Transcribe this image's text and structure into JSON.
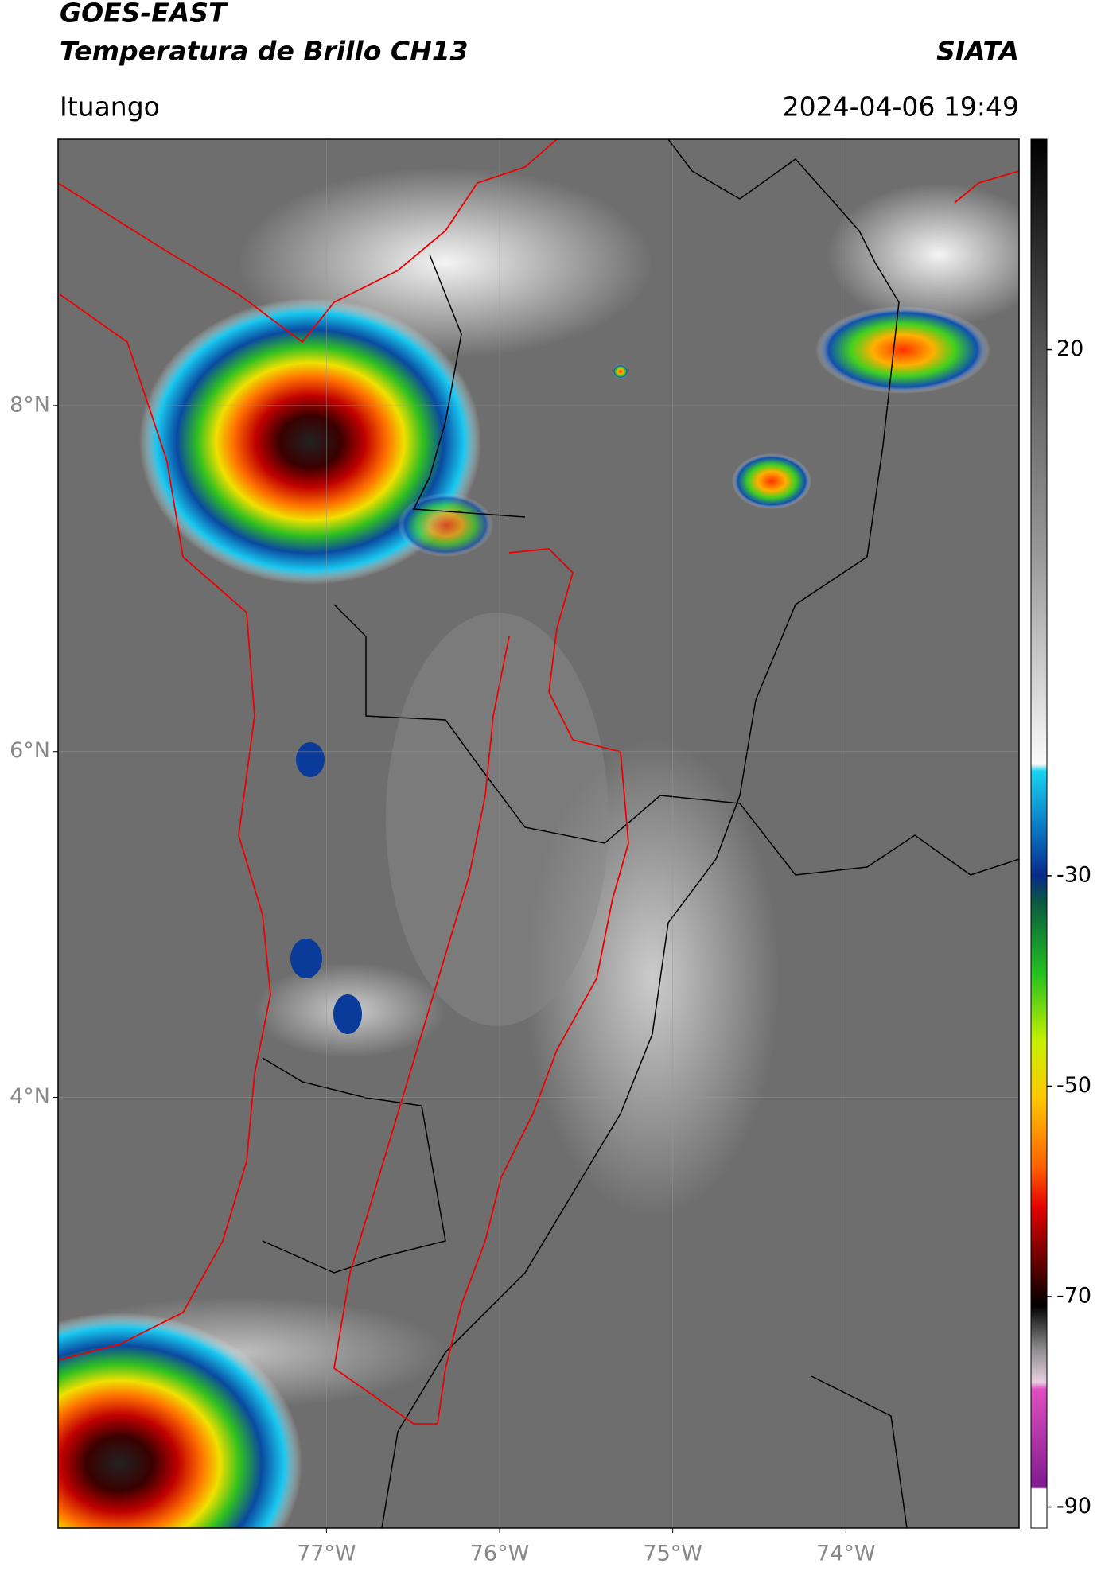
{
  "chart_data": {
    "type": "map",
    "title": "GOES-EAST",
    "subtitle": "Temperatura de Brillo CH13",
    "source": "SIATA",
    "location": "Ituango",
    "timestamp": "2024-04-06 19:49",
    "xlim": [
      -78.55,
      -73.0
    ],
    "ylim": [
      1.51,
      9.54
    ],
    "xticks": [
      {
        "value": -77,
        "label": "77°W"
      },
      {
        "value": -76,
        "label": "76°W"
      },
      {
        "value": -75,
        "label": "75°W"
      },
      {
        "value": -74,
        "label": "74°W"
      }
    ],
    "yticks": [
      {
        "value": 8,
        "label": "8°N"
      },
      {
        "value": 6,
        "label": "6°N"
      },
      {
        "value": 4,
        "label": "4°N"
      }
    ],
    "grid": true,
    "colorbar": {
      "lim": [
        -92,
        40
      ],
      "ticks": [
        20,
        -30,
        -50,
        -70,
        -90
      ]
    }
  }
}
